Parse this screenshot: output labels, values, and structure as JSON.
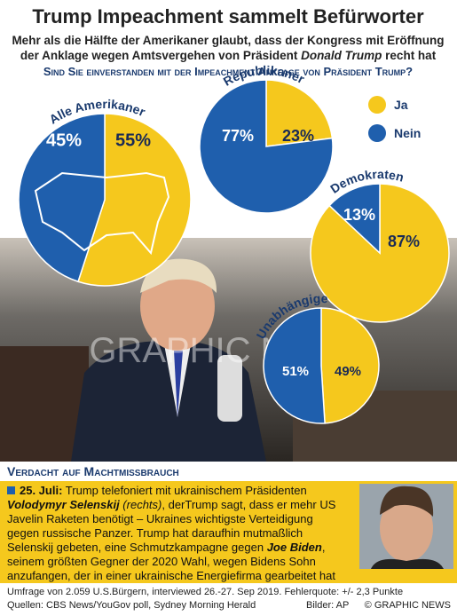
{
  "title": "Trump Impeachment sammelt Befürworter",
  "subtitle": [
    "Mehr als die Hälfte der Amerikaner glaubt, dass der Kongress mit Eröffnung",
    "der Anklage wegen Amtsvergehen von Präsident ",
    "Donald Trump",
    " recht hat"
  ],
  "question": "Sind Sie einverstanden mit der Impeachment Anklage von Präsident Trump?",
  "chart_data": [
    {
      "type": "pie",
      "title": "Alle Amerikaner",
      "categories": [
        "Ja",
        "Nein"
      ],
      "values": [
        55,
        45
      ],
      "value_labels": [
        "55%",
        "45%"
      ],
      "colors": [
        "#f5c81d",
        "#1f5fad"
      ]
    },
    {
      "type": "pie",
      "title": "Republikaner",
      "categories": [
        "Ja",
        "Nein"
      ],
      "values": [
        23,
        77
      ],
      "value_labels": [
        "23%",
        "77%"
      ],
      "colors": [
        "#f5c81d",
        "#1f5fad"
      ]
    },
    {
      "type": "pie",
      "title": "Demokraten",
      "categories": [
        "Ja",
        "Nein"
      ],
      "values": [
        87,
        13
      ],
      "value_labels": [
        "87%",
        "13%"
      ],
      "colors": [
        "#f5c81d",
        "#1f5fad"
      ]
    },
    {
      "type": "pie",
      "title": "Unabhängige",
      "categories": [
        "Ja",
        "Nein"
      ],
      "values": [
        49,
        51
      ],
      "value_labels": [
        "49%",
        "51%"
      ],
      "colors": [
        "#f5c81d",
        "#1f5fad"
      ]
    }
  ],
  "watermark": "GRAPHIC NEWS",
  "section_title": "Verdacht auf Machtmissbrauch",
  "body": [
    "25. Juli:",
    " Trump telefoniert mit ukrainischem Präsidenten",
    "Volodymyr Selenskij",
    " (rechts)",
    ", derTrump sagt, dass er mehr US",
    "Javelin Raketen benötigt – Ukraines wichtigste Verteidigung",
    "gegen russische Panzer. Trump hat daraufhin mutmaßlich",
    "Selenskij gebeten, eine Schmutzkampagne gegen ",
    "Joe Biden",
    ",",
    "seinem größten Gegner der 2020 Wahl, wegen Bidens Sohn",
    "anzufangen, der in einer ukrainische Energiefirma gearbeitet hat"
  ],
  "footer": {
    "survey": "Umfrage von 2.059 U.S.Bürgern, interviewed 26.-27. Sep 2019. Fehlerquote: +/- 2,3 Punkte",
    "sources": "Quellen: CBS News/YouGov poll, Sydney Morning Herald",
    "images": "Bilder: AP",
    "copyright": "© GRAPHIC NEWS"
  }
}
